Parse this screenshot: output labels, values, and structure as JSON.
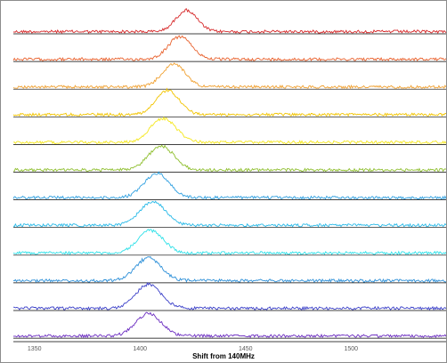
{
  "chart_data": {
    "type": "line",
    "title": "",
    "xlabel": "Shift from 140MHz",
    "ylabel": "",
    "xlim": [
      1340,
      1545
    ],
    "x_ticks": [
      "1350",
      "1400",
      "1450",
      "1500"
    ],
    "grid": false,
    "legend": "none",
    "layout": "stacked-panels",
    "panel_count": 12,
    "series": [
      {
        "color": "#d62728",
        "peak_center": 1422,
        "peak_width": 5,
        "peak_height": 0.8
      },
      {
        "color": "#e8602c",
        "peak_center": 1419,
        "peak_width": 5.5,
        "peak_height": 0.85
      },
      {
        "color": "#f0a030",
        "peak_center": 1416,
        "peak_width": 5.5,
        "peak_height": 0.85
      },
      {
        "color": "#f2c400",
        "peak_center": 1413,
        "peak_width": 5.5,
        "peak_height": 0.9
      },
      {
        "color": "#f5e71c",
        "peak_center": 1411,
        "peak_width": 6,
        "peak_height": 0.9
      },
      {
        "color": "#8fbf2f",
        "peak_center": 1410,
        "peak_width": 6,
        "peak_height": 0.9
      },
      {
        "color": "#2e9fe0",
        "peak_center": 1408,
        "peak_width": 6,
        "peak_height": 0.9
      },
      {
        "color": "#27b9e8",
        "peak_center": 1406,
        "peak_width": 6,
        "peak_height": 0.9
      },
      {
        "color": "#2ee0e8",
        "peak_center": 1405,
        "peak_width": 6,
        "peak_height": 0.85
      },
      {
        "color": "#2c8fd8",
        "peak_center": 1404,
        "peak_width": 6,
        "peak_height": 0.85
      },
      {
        "color": "#3a3fc8",
        "peak_center": 1404,
        "peak_width": 6,
        "peak_height": 0.9
      },
      {
        "color": "#6a2bc0",
        "peak_center": 1404,
        "peak_width": 6,
        "peak_height": 0.85
      }
    ]
  }
}
